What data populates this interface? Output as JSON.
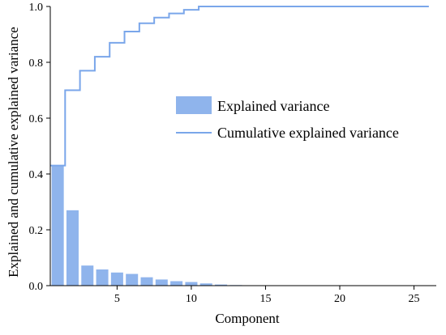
{
  "chart_data": {
    "type": "bar",
    "title": "",
    "xlabel": "Component",
    "ylabel": "Explained and cumulative explained variance",
    "xlim": [
      0.5,
      26.5
    ],
    "ylim": [
      0,
      1.0
    ],
    "x_ticks": [
      5,
      10,
      15,
      20,
      25
    ],
    "y_ticks": [
      0.0,
      0.2,
      0.4,
      0.6,
      0.8,
      1.0
    ],
    "x_tick_labels": [
      "5",
      "10",
      "15",
      "20",
      "25"
    ],
    "y_tick_labels": [
      "0.0",
      "0.2",
      "0.4",
      "0.6",
      "0.8",
      "1.0"
    ],
    "legend_position": "center-right",
    "grid": false,
    "colors": {
      "bar": "#8fb4ec",
      "line": "#7aa6ea"
    },
    "x": [
      1,
      2,
      3,
      4,
      5,
      6,
      7,
      8,
      9,
      10,
      11,
      12,
      13,
      14,
      15,
      16,
      17,
      18,
      19,
      20,
      21,
      22,
      23,
      24,
      25,
      26
    ],
    "series": [
      {
        "name": "Explained variance",
        "kind": "bar",
        "values": [
          0.43,
          0.27,
          0.072,
          0.058,
          0.047,
          0.042,
          0.03,
          0.022,
          0.016,
          0.013,
          0.008,
          0.004,
          0.002,
          0.001,
          0.0005,
          0,
          0,
          0,
          0,
          0,
          0,
          0,
          0,
          0,
          0,
          0
        ]
      },
      {
        "name": "Cumulative explained variance",
        "kind": "step",
        "values": [
          0.43,
          0.7,
          0.77,
          0.82,
          0.87,
          0.91,
          0.94,
          0.96,
          0.975,
          0.988,
          1.0,
          1.0,
          1.0,
          1.0,
          1.0,
          1.0,
          1.0,
          1.0,
          1.0,
          1.0,
          1.0,
          1.0,
          1.0,
          1.0,
          1.0,
          1.0
        ]
      }
    ]
  }
}
